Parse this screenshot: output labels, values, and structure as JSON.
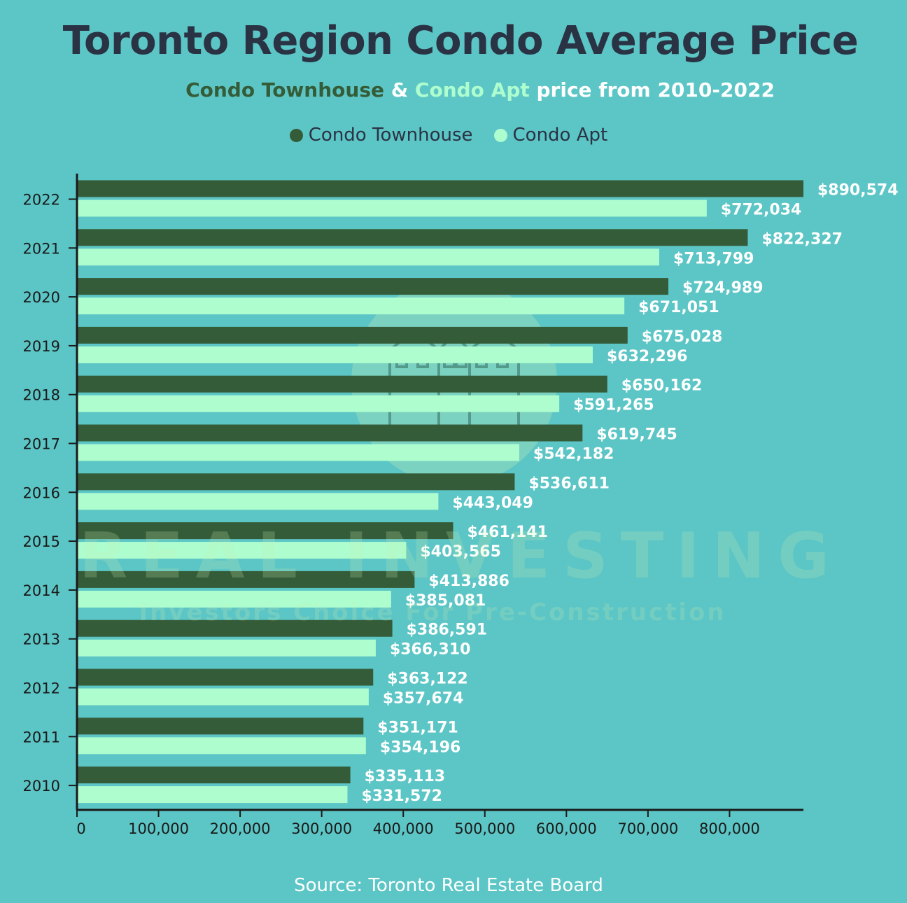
{
  "title": "Toronto Region Condo Average Price",
  "subtitle": {
    "series_a": "Condo Townhouse",
    "amp": " & ",
    "series_b": "Condo Apt",
    "rest": " price from 2010-2022"
  },
  "source": "Source: Toronto Real Estate Board",
  "watermark": {
    "brand": "REAL INVESTING",
    "tagline": "Investors Choice For Pre-Construction",
    "icon": "townhouse-building-icon"
  },
  "colors": {
    "background": "#5cc5c5",
    "townhouse": "#355c38",
    "apt": "#adfdcf",
    "title": "#2a3344",
    "label": "#ffffff"
  },
  "chart_data": {
    "type": "bar",
    "orientation": "horizontal",
    "categories": [
      "2022",
      "2021",
      "2020",
      "2019",
      "2018",
      "2017",
      "2016",
      "2015",
      "2014",
      "2013",
      "2012",
      "2011",
      "2010"
    ],
    "series": [
      {
        "name": "Condo Townhouse",
        "color": "#355c38",
        "values": [
          890574,
          822327,
          724989,
          675028,
          650162,
          619745,
          536611,
          461141,
          413886,
          386591,
          363122,
          351171,
          335113
        ],
        "labels": [
          "$890,574",
          "$822,327",
          "$724,989",
          "$675,028",
          "$650,162",
          "$619,745",
          "$536,611",
          "$461,141",
          "$413,886",
          "$386,591",
          "$363,122",
          "$351,171",
          "$335,113"
        ]
      },
      {
        "name": "Condo Apt",
        "color": "#adfdcf",
        "values": [
          772034,
          713799,
          671051,
          632296,
          591265,
          542182,
          443049,
          403565,
          385081,
          366310,
          357674,
          354196,
          331572
        ],
        "labels": [
          "$772,034",
          "$713,799",
          "$671,051",
          "$632,296",
          "$591,265",
          "$542,182",
          "$443,049",
          "$403,565",
          "$385,081",
          "$366,310",
          "$357,674",
          "$354,196",
          "$331,572"
        ]
      }
    ],
    "xlim": [
      0,
      890574
    ],
    "xticks": [
      0,
      100000,
      200000,
      300000,
      400000,
      500000,
      600000,
      700000,
      800000
    ],
    "xtick_labels": [
      "0",
      "100,000",
      "200,000",
      "300,000",
      "400,000",
      "500,000",
      "600,000",
      "700,000",
      "800,000"
    ],
    "legend_position": "top-center",
    "grid": false
  }
}
